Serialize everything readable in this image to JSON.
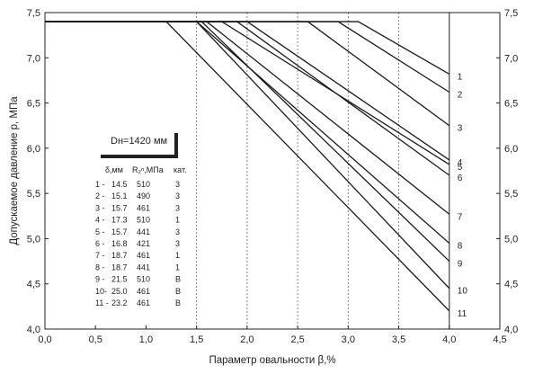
{
  "chart_data": {
    "type": "line",
    "title": "",
    "xlabel": "Параметр овальности β,%",
    "ylabel": "Допускаемое давление p, МПа",
    "xlim": [
      0.0,
      4.5
    ],
    "ylim": [
      4.0,
      7.5
    ],
    "x_ticks": [
      "0,0",
      "0,5",
      "1,0",
      "1,5",
      "2,0",
      "2,5",
      "3,0",
      "3,5",
      "4,0",
      "4,5"
    ],
    "y_ticks": [
      "4,0",
      "4,5",
      "5,0",
      "5,5",
      "6,0",
      "6,5",
      "7,0",
      "7,5"
    ],
    "y_ticks_right": [
      "4,0",
      "4,5",
      "5,0",
      "5,5",
      "6,0",
      "6,5",
      "7,0",
      "7,5"
    ],
    "grid": "vertical dashed at x = 1.5, 2.0, 2.5, 3.0, 3.5",
    "series": [
      {
        "name": "1",
        "x": [
          0.0,
          3.1,
          4.0
        ],
        "y": [
          7.4,
          7.4,
          6.82
        ]
      },
      {
        "name": "2",
        "x": [
          0.0,
          2.9,
          4.0
        ],
        "y": [
          7.4,
          7.4,
          6.62
        ]
      },
      {
        "name": "3",
        "x": [
          0.0,
          2.6,
          4.0
        ],
        "y": [
          7.4,
          7.4,
          6.25
        ]
      },
      {
        "name": "4",
        "x": [
          0.0,
          2.0,
          4.0
        ],
        "y": [
          7.4,
          7.4,
          5.87
        ]
      },
      {
        "name": "5",
        "x": [
          0.0,
          1.75,
          4.0
        ],
        "y": [
          7.4,
          7.4,
          5.82
        ]
      },
      {
        "name": "6",
        "x": [
          0.0,
          1.9,
          4.0
        ],
        "y": [
          7.4,
          7.4,
          5.7
        ]
      },
      {
        "name": "7",
        "x": [
          0.0,
          1.6,
          4.0
        ],
        "y": [
          7.4,
          7.4,
          5.27
        ]
      },
      {
        "name": "8",
        "x": [
          0.0,
          1.5,
          4.0
        ],
        "y": [
          7.4,
          7.4,
          4.95
        ]
      },
      {
        "name": "9",
        "x": [
          0.0,
          1.55,
          4.0
        ],
        "y": [
          7.4,
          7.4,
          4.75
        ]
      },
      {
        "name": "10",
        "x": [
          0.0,
          1.5,
          4.0
        ],
        "y": [
          7.4,
          7.4,
          4.45
        ]
      },
      {
        "name": "11",
        "x": [
          0.0,
          1.2,
          4.0
        ],
        "y": [
          7.4,
          7.4,
          4.2
        ]
      }
    ],
    "legend": {
      "title": "Dн=1420 мм",
      "headers": [
        "δ,мм",
        "R₂ⁿ,МПа",
        "кат."
      ],
      "rows": [
        [
          "1 -",
          "14.5",
          "510",
          "3"
        ],
        [
          "2 -",
          "15.1",
          "490",
          "3"
        ],
        [
          "3 -",
          "15.7",
          "461",
          "3"
        ],
        [
          "4 -",
          "17.3",
          "510",
          "1"
        ],
        [
          "5 -",
          "15.7",
          "441",
          "3"
        ],
        [
          "6 -",
          "16.8",
          "421",
          "3"
        ],
        [
          "7 -",
          "18.7",
          "461",
          "1"
        ],
        [
          "8 -",
          "18.7",
          "441",
          "1"
        ],
        [
          "9 -",
          "21.5",
          "510",
          "В"
        ],
        [
          "10-",
          "25.0",
          "461",
          "В"
        ],
        [
          "11 -",
          "23.2",
          "461",
          "В"
        ]
      ]
    }
  }
}
